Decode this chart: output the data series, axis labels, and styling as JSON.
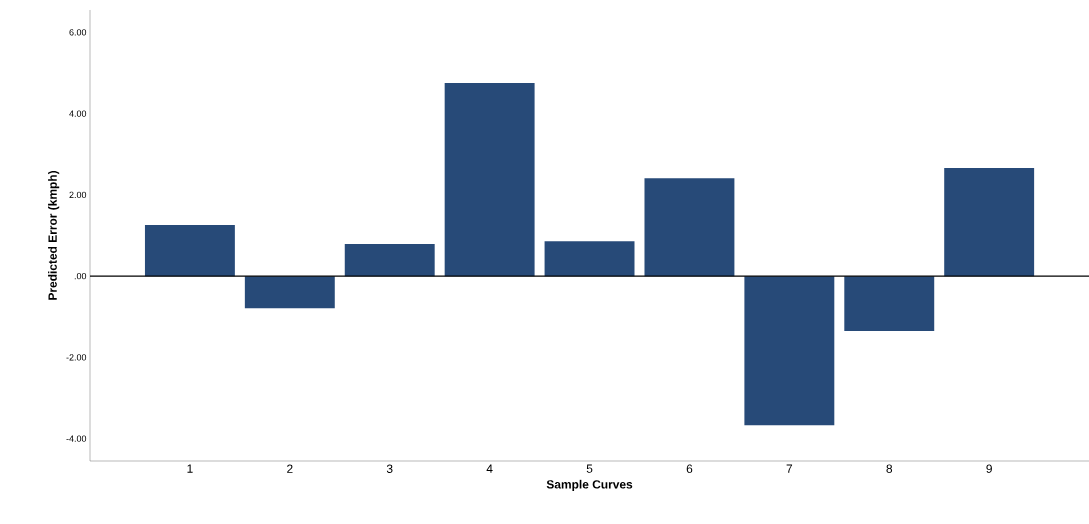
{
  "chart_data": {
    "type": "bar",
    "xlabel": "Sample Curves",
    "ylabel": "Predicted Error (kmph)",
    "categories": [
      "1",
      "2",
      "3",
      "4",
      "5",
      "6",
      "7",
      "8",
      "9"
    ],
    "values": [
      1.26,
      -0.79,
      0.79,
      4.75,
      0.86,
      2.41,
      -3.67,
      -1.35,
      2.66
    ],
    "color": "#274a78",
    "ylim": [
      -4.55,
      6.55
    ],
    "yticks": [
      {
        "value": -4,
        "label": "-4.00"
      },
      {
        "value": -2,
        "label": "-2.00"
      },
      {
        "value": 0,
        "label": ".00"
      },
      {
        "value": 2,
        "label": "2.00"
      },
      {
        "value": 4,
        "label": "4.00"
      },
      {
        "value": 6,
        "label": "6.00"
      }
    ],
    "ref_lines": [
      {
        "axis": "y",
        "value": 0,
        "color": "#000000"
      }
    ],
    "grid": false
  }
}
